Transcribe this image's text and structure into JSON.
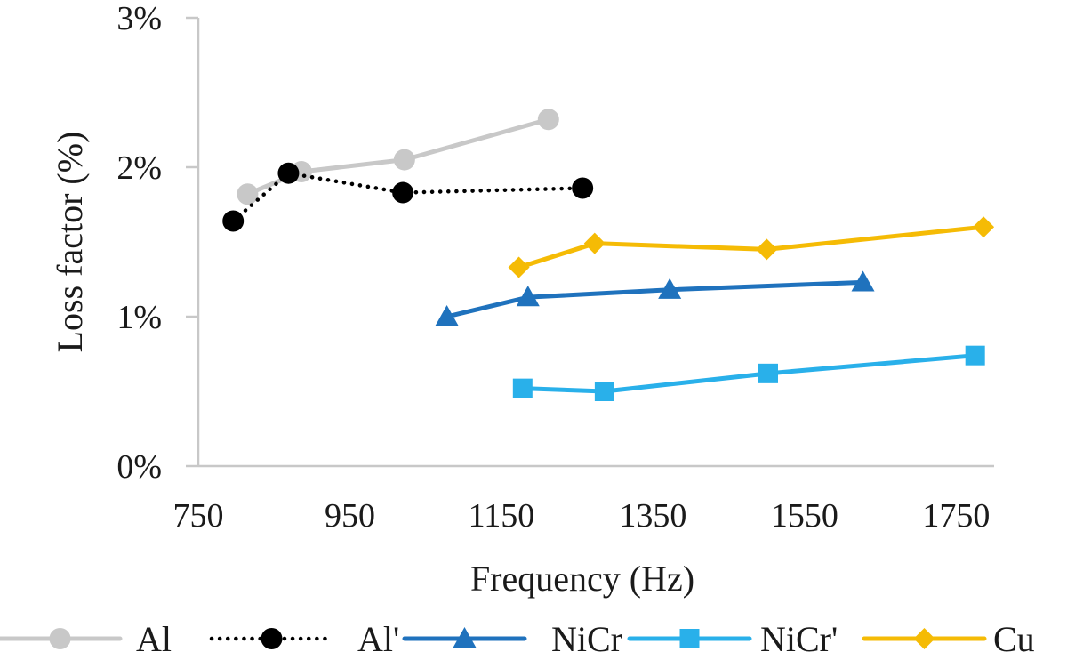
{
  "chart_data": {
    "type": "line",
    "xlabel": "Frequency (Hz)",
    "ylabel": "Loss factor (%)",
    "xlim": [
      750,
      1800
    ],
    "ylim": [
      0,
      3
    ],
    "x_ticks": [
      750,
      950,
      1150,
      1350,
      1550,
      1750
    ],
    "x_tick_labels": [
      "750",
      "950",
      "1150",
      "1350",
      "1550",
      "1750"
    ],
    "y_ticks": [
      0,
      1,
      2,
      3
    ],
    "y_tick_labels": [
      "0%",
      "1%",
      "2%",
      "3%"
    ],
    "grid": false,
    "legend_position": "bottom",
    "series": [
      {
        "name": "Al",
        "color": "#c8c8c8",
        "marker": "circle",
        "dash": "solid",
        "x": [
          815,
          886,
          1022,
          1212
        ],
        "y": [
          1.82,
          1.97,
          2.05,
          2.32
        ]
      },
      {
        "name": "Al'",
        "color": "#000000",
        "marker": "circle",
        "dash": "dotted",
        "x": [
          796,
          869,
          1020,
          1257
        ],
        "y": [
          1.64,
          1.96,
          1.83,
          1.86
        ]
      },
      {
        "name": "NiCr",
        "color": "#1f72bd",
        "marker": "triangle",
        "dash": "solid",
        "x": [
          1078,
          1185,
          1372,
          1627
        ],
        "y": [
          1.0,
          1.13,
          1.18,
          1.23
        ]
      },
      {
        "name": "NiCr'",
        "color": "#29b0ea",
        "marker": "square",
        "dash": "solid",
        "x": [
          1178,
          1286,
          1502,
          1775
        ],
        "y": [
          0.52,
          0.5,
          0.62,
          0.74
        ]
      },
      {
        "name": "Cu",
        "color": "#f5bb05",
        "marker": "diamond",
        "dash": "solid",
        "x": [
          1173,
          1273,
          1500,
          1786
        ],
        "y": [
          1.33,
          1.49,
          1.45,
          1.6
        ]
      }
    ]
  }
}
